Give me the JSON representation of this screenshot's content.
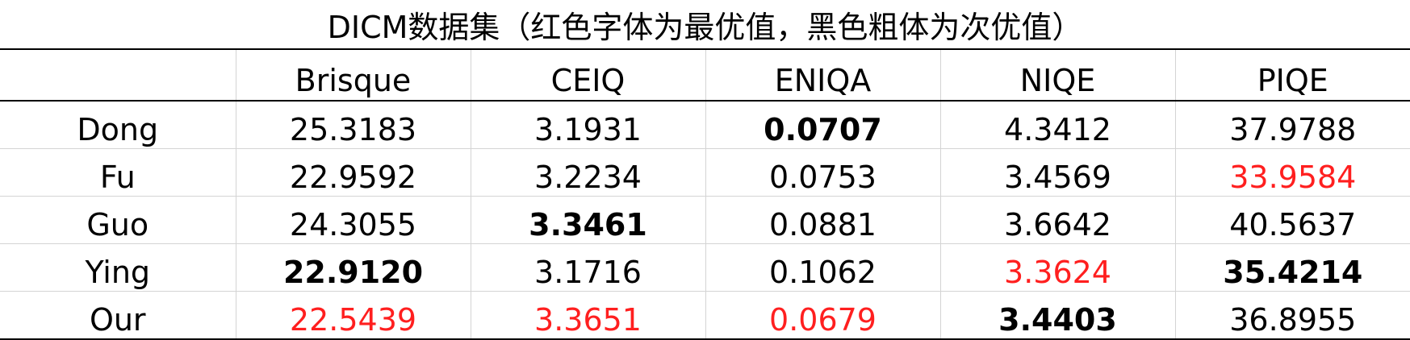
{
  "title": "DICM数据集（红色字体为最优值，黑色粗体为次优值）",
  "colors": {
    "best": "#ff1f1f",
    "text": "#000000",
    "gridline": "#d4d4d4"
  },
  "columns": [
    "",
    "Brisque",
    "CEIQ",
    "ENIQA",
    "NIQE",
    "PIQE"
  ],
  "rows": [
    {
      "method": "Dong",
      "cells": [
        {
          "value": "25.3183",
          "style": "normal"
        },
        {
          "value": "3.1931",
          "style": "normal"
        },
        {
          "value": "0.0707",
          "style": "second"
        },
        {
          "value": "4.3412",
          "style": "normal"
        },
        {
          "value": "37.9788",
          "style": "normal"
        }
      ]
    },
    {
      "method": "Fu",
      "cells": [
        {
          "value": "22.9592",
          "style": "normal"
        },
        {
          "value": "3.2234",
          "style": "normal"
        },
        {
          "value": "0.0753",
          "style": "normal"
        },
        {
          "value": "3.4569",
          "style": "normal"
        },
        {
          "value": "33.9584",
          "style": "best"
        }
      ]
    },
    {
      "method": "Guo",
      "cells": [
        {
          "value": "24.3055",
          "style": "normal"
        },
        {
          "value": "3.3461",
          "style": "second"
        },
        {
          "value": "0.0881",
          "style": "normal"
        },
        {
          "value": "3.6642",
          "style": "normal"
        },
        {
          "value": "40.5637",
          "style": "normal"
        }
      ]
    },
    {
      "method": "Ying",
      "cells": [
        {
          "value": "22.9120",
          "style": "second"
        },
        {
          "value": "3.1716",
          "style": "normal"
        },
        {
          "value": "0.1062",
          "style": "normal"
        },
        {
          "value": "3.3624",
          "style": "best"
        },
        {
          "value": "35.4214",
          "style": "second"
        }
      ]
    },
    {
      "method": "Our",
      "cells": [
        {
          "value": "22.5439",
          "style": "best"
        },
        {
          "value": "3.3651",
          "style": "best"
        },
        {
          "value": "0.0679",
          "style": "best"
        },
        {
          "value": "3.4403",
          "style": "second"
        },
        {
          "value": "36.8955",
          "style": "normal"
        }
      ]
    }
  ]
}
